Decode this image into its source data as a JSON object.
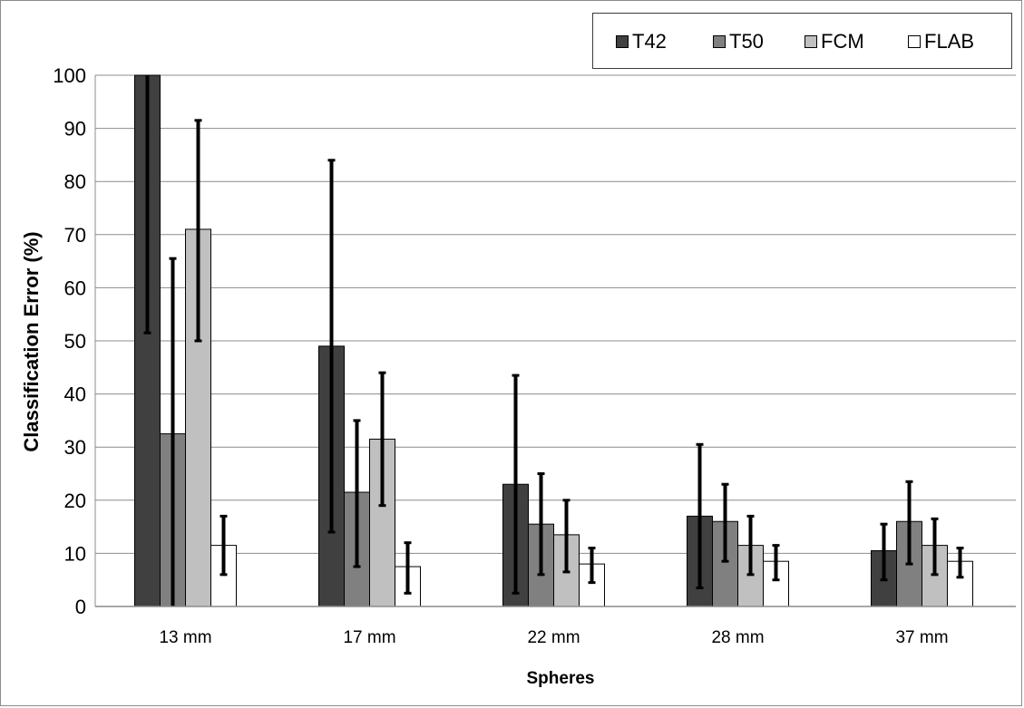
{
  "chart_data": {
    "type": "bar",
    "title": "",
    "xlabel": "Spheres",
    "ylabel": "Classification Error (%)",
    "ylim": [
      0,
      100
    ],
    "yticks": [
      "0",
      "10",
      "20",
      "30",
      "40",
      "50",
      "60",
      "70",
      "80",
      "90",
      "100"
    ],
    "grid": "horizontal",
    "legend_position": "top-right",
    "categories": [
      "13 mm",
      "17 mm",
      "22 mm",
      "28 mm",
      "37 mm"
    ],
    "series": [
      {
        "name": "T42",
        "color": "#404040",
        "values": [
          100,
          49,
          23,
          17,
          10.5
        ],
        "err_low": [
          51.5,
          14,
          2.5,
          3.5,
          5
        ],
        "err_high": [
          100,
          84,
          43.5,
          30.5,
          15.5
        ]
      },
      {
        "name": "T50",
        "color": "#808080",
        "values": [
          32.5,
          21.5,
          15.5,
          16,
          16
        ],
        "err_low": [
          0,
          7.5,
          6,
          8.5,
          8
        ],
        "err_high": [
          65.5,
          35,
          25,
          23,
          23.5
        ]
      },
      {
        "name": "FCM",
        "color": "#c0c0c0",
        "values": [
          71,
          31.5,
          13.5,
          11.5,
          11.5
        ],
        "err_low": [
          50,
          19,
          6.5,
          6,
          6
        ],
        "err_high": [
          91.5,
          44,
          20,
          17,
          16.5
        ]
      },
      {
        "name": "FLAB",
        "color": "#ffffff",
        "values": [
          11.5,
          7.5,
          8,
          8.5,
          8.5
        ],
        "err_low": [
          6,
          2.5,
          4.5,
          5,
          5.5
        ],
        "err_high": [
          17,
          12,
          11,
          11.5,
          11
        ]
      }
    ]
  }
}
